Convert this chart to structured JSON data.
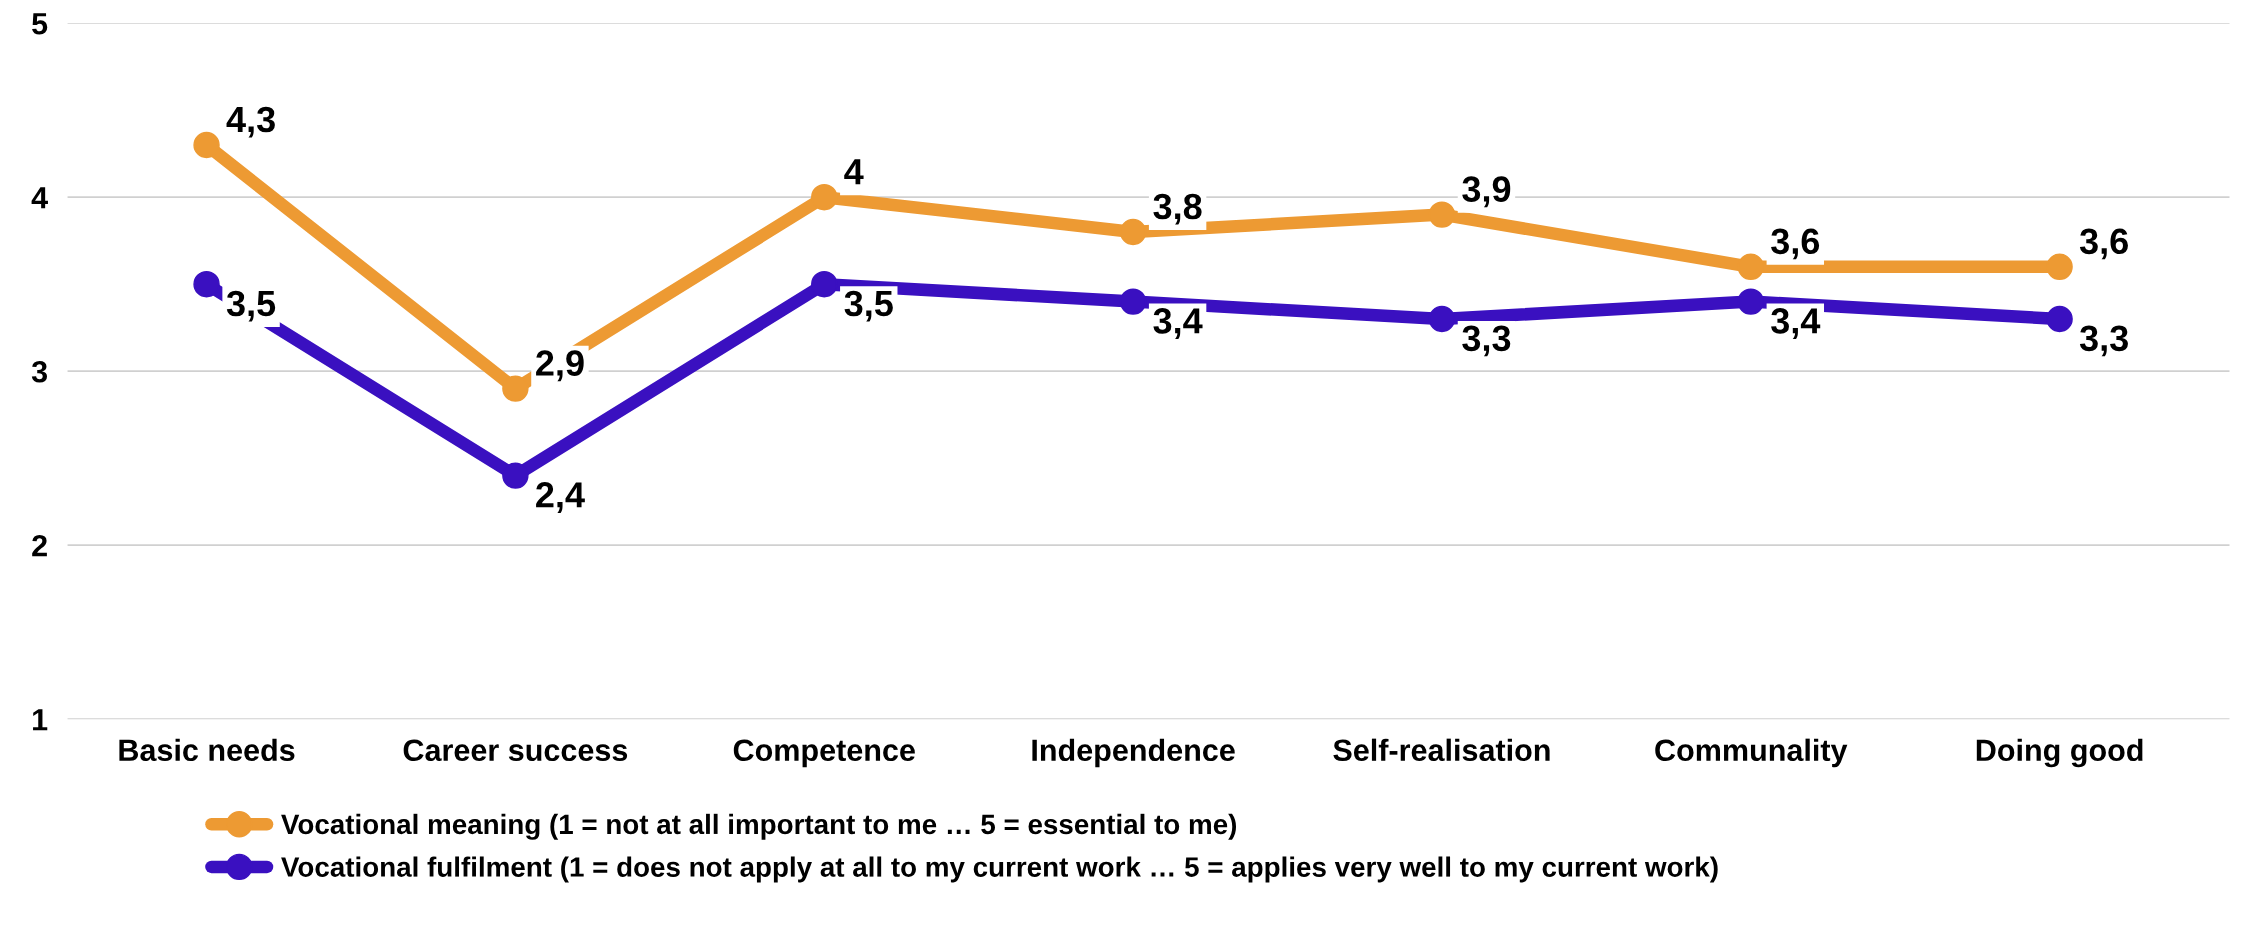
{
  "chart_data": {
    "type": "line",
    "categories": [
      "Basic needs",
      "Career success",
      "Competence",
      "Independence",
      "Self-realisation",
      "Communality",
      "Doing good"
    ],
    "series": [
      {
        "name": "Vocational meaning (1 = not at all important to me … 5 = essential to me)",
        "color": "#ed9a33",
        "values": [
          4.3,
          2.9,
          4,
          3.8,
          3.9,
          3.6,
          3.6
        ],
        "value_labels": [
          "4,3",
          "2,9",
          "4",
          "3,8",
          "3,9",
          "3,6",
          "3,6"
        ]
      },
      {
        "name": "Vocational fulfilment (1 = does not apply at all to my current work … 5 = applies very well to my current work)",
        "color": "#3a10c0",
        "values": [
          3.5,
          2.4,
          3.5,
          3.4,
          3.3,
          3.4,
          3.3
        ],
        "value_labels": [
          "3,5",
          "2,4",
          "3,5",
          "3,4",
          "3,3",
          "3,4",
          "3,3"
        ]
      }
    ],
    "ylim": [
      1,
      5
    ],
    "yticks": [
      1,
      2,
      3,
      4,
      5
    ],
    "grid": "y",
    "legend": "bottom",
    "marker": "circle",
    "line_style": "solid"
  }
}
